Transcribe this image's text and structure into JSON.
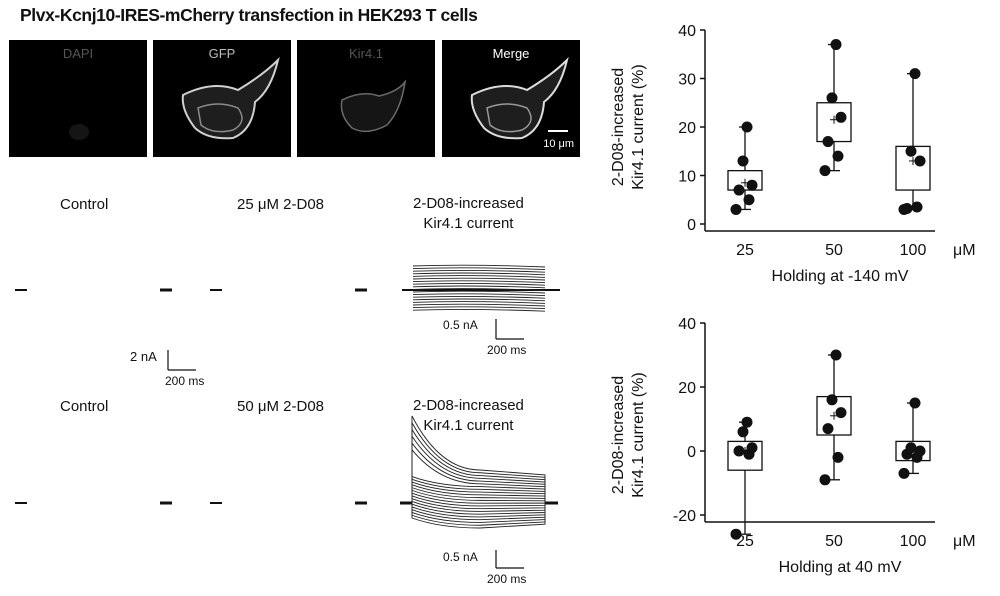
{
  "figure": {
    "title": "Plvx-Kcnj10-IRES-mCherry transfection in HEK293 T cells",
    "micrographs": [
      {
        "label": "DAPI",
        "label_color": "#555555"
      },
      {
        "label": "GFP",
        "label_color": "#bbbbbb"
      },
      {
        "label": "Kir4.1",
        "label_color": "#555555"
      },
      {
        "label": "Merge",
        "label_color": "#ffffff"
      }
    ],
    "image_scale_bar": "10 μm",
    "traces": {
      "row1": {
        "control_label": "Control",
        "drug_label": "25 μM 2-D08",
        "diff_label_line1": "2-D08-increased",
        "diff_label_line2": "Kir4.1 current"
      },
      "row2": {
        "control_label": "Control",
        "drug_label": "50 μM 2-D08",
        "diff_label_line1": "2-D08-increased",
        "diff_label_line2": "Kir4.1 current"
      },
      "scale_bars": {
        "main_current": "2 nA",
        "main_time": "200 ms",
        "diff_current": "0.5 nA",
        "diff_time": "200 ms"
      }
    }
  },
  "chart_data": [
    {
      "type": "box",
      "title": "",
      "ylabel_line1": "2-D08-increased",
      "ylabel_line2": "Kir4.1 current (%)",
      "xlabel": "Holding at -140 mV",
      "x_unit": "μM",
      "categories": [
        "25",
        "50",
        "100"
      ],
      "ylim": [
        0,
        40
      ],
      "yticks": [
        "0",
        "10",
        "20",
        "30",
        "40"
      ],
      "boxes": [
        {
          "q1": 7,
          "q3": 11,
          "min": 3,
          "max": 20,
          "mean": 8.5
        },
        {
          "q1": 17,
          "q3": 25,
          "min": 11,
          "max": 37,
          "mean": 21.5
        },
        {
          "q1": 7,
          "q3": 16,
          "min": 3,
          "max": 31,
          "mean": 13
        }
      ],
      "points": [
        [
          3,
          5,
          7,
          8,
          13,
          20
        ],
        [
          11,
          14,
          17,
          22,
          26,
          37
        ],
        [
          3,
          3.5,
          3.2,
          13,
          15,
          31
        ]
      ]
    },
    {
      "type": "box",
      "title": "",
      "ylabel_line1": "2-D08-increased",
      "ylabel_line2": "Kir4.1 current (%)",
      "xlabel": "Holding at 40 mV",
      "x_unit": "μM",
      "categories": [
        "25",
        "50",
        "100"
      ],
      "ylim": [
        -30,
        40
      ],
      "yticks": [
        "-20",
        "0",
        "20",
        "40"
      ],
      "boxes": [
        {
          "q1": -6,
          "q3": 3,
          "min": -26,
          "max": 9,
          "mean": 0
        },
        {
          "q1": 5,
          "q3": 17,
          "min": -9,
          "max": 30,
          "mean": 11
        },
        {
          "q1": -3,
          "q3": 3,
          "min": -7,
          "max": 15,
          "mean": 1
        }
      ],
      "points": [
        [
          -26,
          -1,
          0,
          1,
          6,
          9
        ],
        [
          -9,
          -2,
          7,
          12,
          16,
          30
        ],
        [
          -7,
          -2,
          -1,
          0,
          1,
          15
        ]
      ]
    }
  ]
}
